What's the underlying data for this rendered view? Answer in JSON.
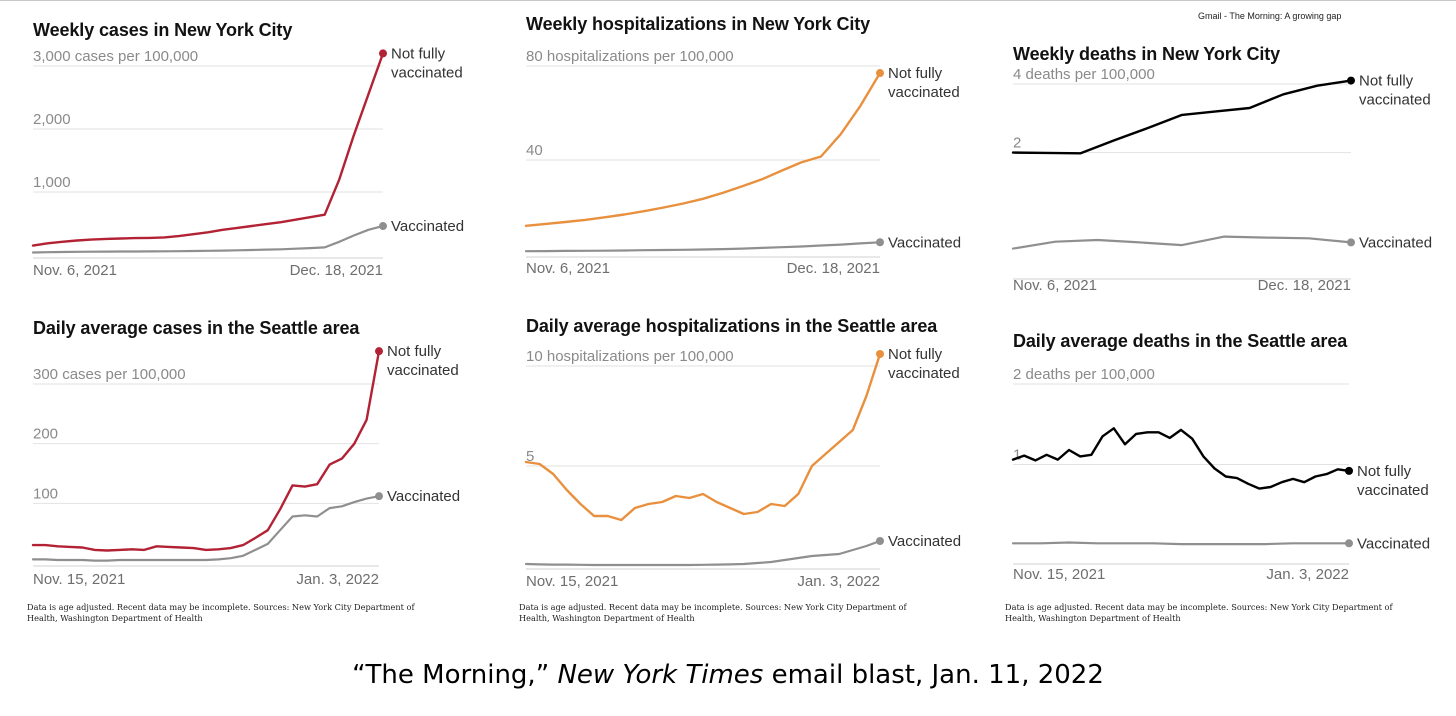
{
  "header_note": "Gmail - The Morning: A growing gap",
  "caption": {
    "part1": "“The Morning,” ",
    "part2": "New York Times",
    "part3": " email blast, Jan. 11, 2022"
  },
  "sources": [
    {
      "line1": "Data is age adjusted. Recent data may be incomplete.  Sources: New York City Department of",
      "line2": "Health, Washington Department of Health"
    },
    {
      "line1": "Data is age adjusted. Recent data may be incomplete.  Sources: New York City Department of",
      "line2": "Health, Washington Department of Health"
    },
    {
      "line1": "Data is age adjusted. Recent data may be incomplete.  Sources: New York City Department of",
      "line2": "Health, Washington Department of Health"
    }
  ],
  "chart_data": [
    {
      "type": "line",
      "title": "Weekly cases in New York City",
      "y_ticks": [
        {
          "value": 3000,
          "label": "3,000 cases per 100,000"
        },
        {
          "value": 2000,
          "label": "2,000"
        },
        {
          "value": 1000,
          "label": "1,000"
        }
      ],
      "ylim": [
        0,
        3000
      ],
      "x_labels": [
        "Nov. 6, 2021",
        "Dec. 18, 2021"
      ],
      "color": "#b22234",
      "series": [
        {
          "name": "Not fully vaccinated",
          "label_line1": "Not fully",
          "label_line2": "vaccinated",
          "values": [
            150,
            185,
            210,
            230,
            245,
            255,
            262,
            268,
            272,
            280,
            300,
            330,
            360,
            400,
            430,
            460,
            490,
            520,
            560,
            600,
            640,
            1200,
            1900,
            2550,
            3200
          ]
        },
        {
          "name": "Vaccinated",
          "label_line1": "Vaccinated",
          "values": [
            40,
            45,
            48,
            50,
            52,
            54,
            55,
            56,
            57,
            58,
            60,
            63,
            66,
            70,
            75,
            80,
            85,
            90,
            100,
            110,
            120,
            210,
            310,
            400,
            460
          ]
        }
      ]
    },
    {
      "type": "line",
      "title": "Weekly hospitalizations in New York City",
      "y_ticks": [
        {
          "value": 80,
          "label": "80 hospitalizations per 100,000"
        },
        {
          "value": 40,
          "label": "40"
        }
      ],
      "ylim": [
        0,
        80
      ],
      "x_labels": [
        "Nov. 6, 2021",
        "Dec. 18, 2021"
      ],
      "color": "#e8903e",
      "series": [
        {
          "name": "Not fully vaccinated",
          "label_line1": "Not fully",
          "label_line2": "vaccinated",
          "values": [
            12,
            12.8,
            13.6,
            14.5,
            15.6,
            16.8,
            18.2,
            19.8,
            21.5,
            23.5,
            26,
            28.8,
            31.8,
            35.5,
            39,
            41.5,
            51,
            63,
            77
          ]
        },
        {
          "name": "Vaccinated",
          "label_line1": "Vaccinated",
          "values": [
            1.2,
            1.25,
            1.3,
            1.35,
            1.4,
            1.5,
            1.6,
            1.7,
            1.8,
            1.9,
            2.1,
            2.3,
            2.6,
            2.9,
            3.2,
            3.6,
            4,
            4.5,
            5
          ]
        }
      ]
    },
    {
      "type": "line",
      "title": "Weekly deaths in New York City",
      "y_ticks": [
        {
          "value": 4,
          "label": "4 deaths per 100,000"
        },
        {
          "value": 2,
          "label": "2"
        }
      ],
      "ylim": [
        -1.6,
        4
      ],
      "x_labels": [
        "Nov. 6, 2021",
        "Dec. 18, 2021"
      ],
      "color": "#000000",
      "series": [
        {
          "name": "Not fully vaccinated",
          "label_line1": "Not fully",
          "label_line2": "vaccinated",
          "values": [
            2.0,
            1.99,
            1.98,
            2.36,
            2.72,
            3.1,
            3.2,
            3.3,
            3.7,
            3.95,
            4.1
          ]
        },
        {
          "name": "Vaccinated",
          "label_line1": "Vaccinated",
          "values": [
            -0.8,
            -0.6,
            -0.55,
            -0.62,
            -0.7,
            -0.45,
            -0.48,
            -0.5,
            -0.62
          ]
        }
      ]
    },
    {
      "type": "line",
      "title": "Daily average cases in the Seattle area",
      "y_ticks": [
        {
          "value": 300,
          "label": "300 cases per 100,000"
        },
        {
          "value": 200,
          "label": "200"
        },
        {
          "value": 100,
          "label": "100"
        }
      ],
      "ylim": [
        0,
        300
      ],
      "x_labels": [
        "Nov. 15, 2021",
        "Jan. 3, 2022"
      ],
      "color": "#b22234",
      "series": [
        {
          "name": "Not fully vaccinated",
          "label_line1": "Not fully",
          "label_line2": "vaccinated",
          "values": [
            30,
            30,
            28,
            27,
            26,
            22,
            21,
            22,
            23,
            22,
            28,
            27,
            26,
            25,
            22,
            23,
            25,
            30,
            42,
            55,
            90,
            130,
            128,
            132,
            165,
            175,
            200,
            240,
            355
          ]
        },
        {
          "name": "Vaccinated",
          "label_line1": "Vaccinated",
          "values": [
            6,
            6,
            5,
            5,
            5,
            4,
            4,
            5,
            5,
            5,
            5,
            5,
            5,
            5,
            5,
            6,
            8,
            12,
            22,
            32,
            55,
            78,
            80,
            78,
            92,
            95,
            102,
            108,
            112
          ]
        }
      ]
    },
    {
      "type": "line",
      "title": "Daily average hospitalizations in the Seattle area",
      "y_ticks": [
        {
          "value": 10,
          "label": "10 hospitalizations per 100,000"
        },
        {
          "value": 5,
          "label": "5"
        }
      ],
      "ylim": [
        0,
        10
      ],
      "x_labels": [
        "Nov. 15, 2021",
        "Jan. 3, 2022"
      ],
      "color": "#e8903e",
      "series": [
        {
          "name": "Not fully vaccinated",
          "label_line1": "Not fully",
          "label_line2": "vaccinated",
          "values": [
            5.2,
            5.1,
            4.6,
            3.8,
            3.1,
            2.5,
            2.5,
            2.3,
            2.9,
            3.1,
            3.2,
            3.5,
            3.4,
            3.6,
            3.2,
            2.9,
            2.6,
            2.7,
            3.1,
            3.0,
            3.6,
            5.0,
            5.6,
            6.2,
            6.8,
            8.5,
            10.6
          ]
        },
        {
          "name": "Vaccinated",
          "label_line1": "Vaccinated",
          "values": [
            0.1,
            0.08,
            0.07,
            0.07,
            0.06,
            0.05,
            0.05,
            0.05,
            0.05,
            0.05,
            0.05,
            0.05,
            0.05,
            0.06,
            0.07,
            0.08,
            0.1,
            0.15,
            0.2,
            0.3,
            0.4,
            0.5,
            0.55,
            0.6,
            0.8,
            1.0,
            1.25
          ]
        }
      ]
    },
    {
      "type": "line",
      "title": "Daily average deaths in the Seattle area",
      "y_ticks": [
        {
          "value": 2,
          "label": "2 deaths per 100,000"
        },
        {
          "value": 1,
          "label": "1"
        }
      ],
      "ylim": [
        -0.2,
        2
      ],
      "x_labels": [
        "Nov. 15, 2021",
        "Jan. 3, 2022"
      ],
      "color": "#000000",
      "series": [
        {
          "name": "Not fully vaccinated",
          "label_line1": "Not fully",
          "label_line2": "vaccinated",
          "values": [
            1.06,
            1.11,
            1.05,
            1.12,
            1.06,
            1.18,
            1.1,
            1.12,
            1.35,
            1.45,
            1.25,
            1.38,
            1.4,
            1.4,
            1.33,
            1.43,
            1.32,
            1.1,
            0.95,
            0.85,
            0.83,
            0.76,
            0.7,
            0.72,
            0.78,
            0.82,
            0.78,
            0.85,
            0.88,
            0.94,
            0.92
          ]
        },
        {
          "name": "Vaccinated",
          "label_line1": "Vaccinated",
          "values": [
            0.02,
            0.02,
            0.03,
            0.02,
            0.02,
            0.02,
            0.01,
            0.01,
            0.01,
            0.01,
            0.02,
            0.02,
            0.02
          ]
        }
      ]
    }
  ]
}
